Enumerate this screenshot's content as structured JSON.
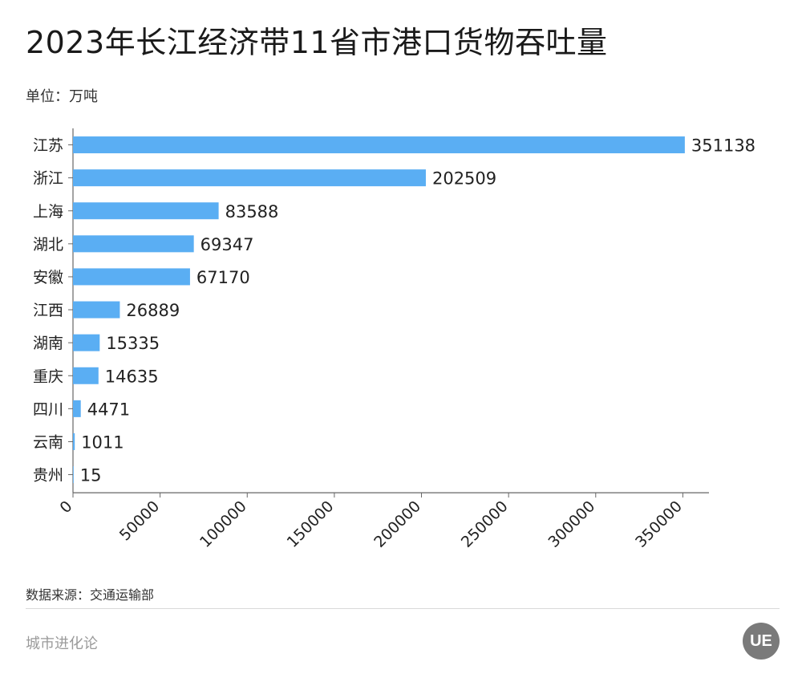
{
  "title": "2023年长江经济带11省市港口货物吞吐量",
  "unit_label": "单位：万吨",
  "source_label": "数据来源：交通运输部",
  "brand_label": "城市进化论",
  "logo_text": "UE",
  "colors": {
    "bar": "#5aaef3",
    "axis": "#666666",
    "text": "#333333"
  },
  "chart_data": {
    "type": "bar",
    "orientation": "horizontal",
    "categories": [
      "江苏",
      "浙江",
      "上海",
      "湖北",
      "安徽",
      "江西",
      "湖南",
      "重庆",
      "四川",
      "云南",
      "贵州"
    ],
    "values": [
      351138,
      202509,
      83588,
      69347,
      67170,
      26889,
      15335,
      14635,
      4471,
      1011,
      15
    ],
    "xticks": [
      0,
      50000,
      100000,
      150000,
      200000,
      250000,
      300000,
      350000
    ],
    "xlim": [
      0,
      365000
    ],
    "data_labels": true,
    "grid": false,
    "xlabel": "",
    "ylabel": ""
  }
}
